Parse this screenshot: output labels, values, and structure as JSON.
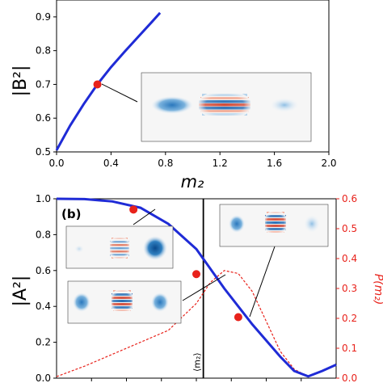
{
  "chart_data": [
    {
      "panel": "a",
      "type": "line",
      "ylabel": "|B²|",
      "xlabel": "m₂",
      "xlim": [
        0.0,
        2.0
      ],
      "ylim": [
        0.5,
        0.95
      ],
      "xticks": [
        "0.0",
        "0.4",
        "0.8",
        "1.2",
        "1.6",
        "2.0"
      ],
      "yticks": [
        "0.5",
        "0.6",
        "0.7",
        "0.8",
        "0.9"
      ],
      "grid": false,
      "series": [
        {
          "color": "#1f2bd6",
          "x": [
            0.0,
            0.1,
            0.2,
            0.3,
            0.4,
            0.5,
            0.6,
            0.7,
            0.76
          ],
          "y": [
            0.505,
            0.578,
            0.642,
            0.7,
            0.751,
            0.797,
            0.841,
            0.885,
            0.912
          ]
        }
      ],
      "markers": [
        {
          "x": 0.3,
          "y": 0.7,
          "color": "#e8221b"
        }
      ],
      "insets": [
        "wavefunction-density-image"
      ]
    },
    {
      "panel": "b",
      "panel_label": "(b)",
      "type": "line",
      "ylabel": "|A²|",
      "ylabel_right": "P(m₂)",
      "xlim": [
        0.0,
        2.0
      ],
      "ylim": [
        0.0,
        1.0
      ],
      "ylim_right": [
        0.0,
        0.6
      ],
      "yticks": [
        "0.0",
        "0.2",
        "0.4",
        "0.6",
        "0.8",
        "1.0"
      ],
      "yticks_right": [
        "0.0",
        "0.1",
        "0.2",
        "0.3",
        "0.4",
        "0.5",
        "0.6"
      ],
      "vline_label": "⟨m₂⟩",
      "vline_x": 1.05,
      "grid": false,
      "series": [
        {
          "color": "#1f2bd6",
          "x": [
            0.0,
            0.2,
            0.4,
            0.6,
            0.8,
            1.0,
            1.2,
            1.4,
            1.6,
            1.7,
            1.8,
            1.9,
            2.0
          ],
          "y": [
            1.0,
            0.998,
            0.985,
            0.95,
            0.86,
            0.72,
            0.5,
            0.3,
            0.12,
            0.04,
            0.01,
            0.04,
            0.075
          ]
        },
        {
          "color": "#e8221b",
          "dashed": true,
          "axis": "right",
          "x": [
            0.0,
            0.2,
            0.4,
            0.6,
            0.8,
            1.0,
            1.1,
            1.2,
            1.3,
            1.4,
            1.5,
            1.6,
            1.7,
            1.8
          ],
          "y": [
            0.005,
            0.04,
            0.08,
            0.12,
            0.16,
            0.25,
            0.32,
            0.36,
            0.35,
            0.29,
            0.19,
            0.09,
            0.03,
            0.005
          ]
        }
      ],
      "markers": [
        {
          "x": 0.55,
          "y": 0.94,
          "color": "#e8221b"
        },
        {
          "x": 1.0,
          "y": 0.58,
          "color": "#e8221b"
        },
        {
          "x": 1.3,
          "y": 0.34,
          "color": "#e8221b"
        }
      ],
      "insets": [
        "wavefunction-density-image",
        "wavefunction-density-image",
        "wavefunction-density-image"
      ]
    }
  ]
}
